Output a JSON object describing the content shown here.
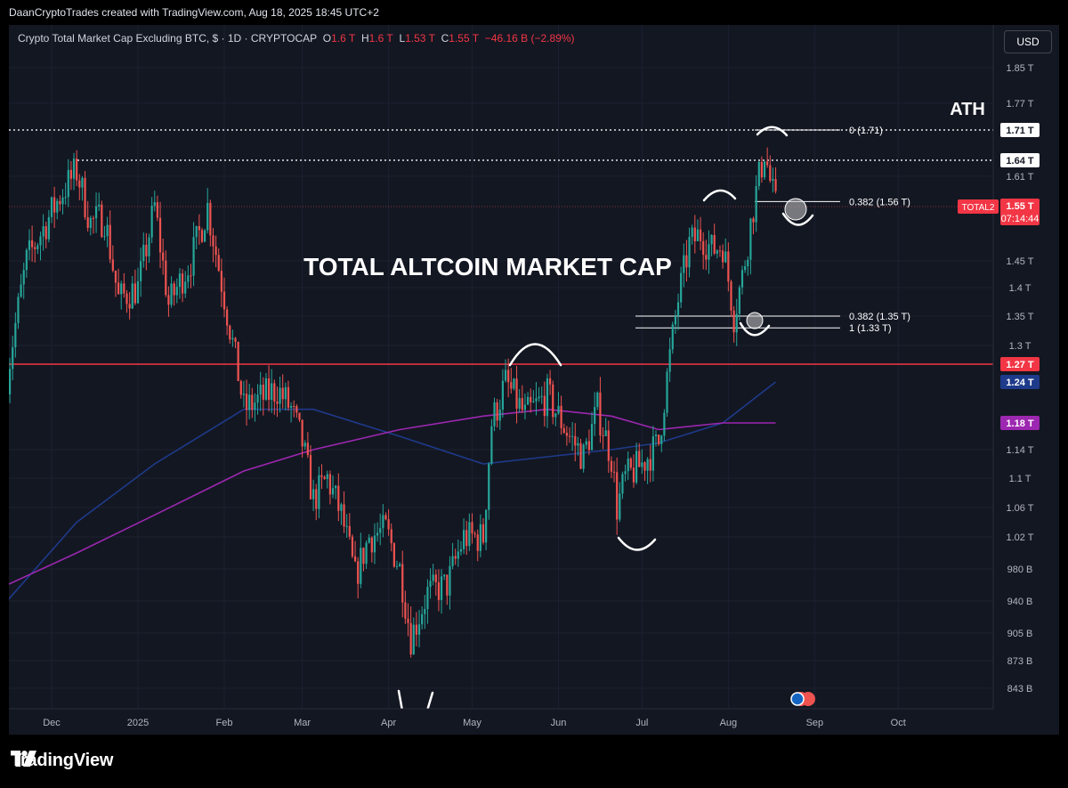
{
  "header": {
    "credit": "DaanCryptoTrades created with TradingView.com, Aug 18, 2025 18:45 UTC+2"
  },
  "legend": {
    "symbol": "Crypto Total Market Cap Excluding BTC, $ · 1D · CRYPTOCAP",
    "o_label": "O",
    "o_value": "1.6 T",
    "h_label": "H",
    "h_value": "1.6 T",
    "l_label": "L",
    "l_value": "1.53 T",
    "c_label": "C",
    "c_value": "1.55 T",
    "change": "−46.16 B (−2.89%)"
  },
  "currency_button": "USD",
  "brand": {
    "name": "TradingView"
  },
  "colors": {
    "background": "#131722",
    "up": "#26a69a",
    "down": "#ef5350",
    "ma_blue": "#1e3a8a",
    "ma_purple": "#9c27b0",
    "support_red": "#f23645"
  },
  "chart_data": {
    "type": "candlestick",
    "title": "TOTAL ALTCOIN MARKET CAP",
    "symbol_tag": "TOTAL2",
    "countdown": "07:14:44",
    "x_ticks": [
      "Dec",
      "2025",
      "Feb",
      "Mar",
      "Apr",
      "May",
      "Jun",
      "Jul",
      "Aug",
      "Sep",
      "Oct"
    ],
    "y_ticks": [
      "1.85 T",
      "1.77 T",
      "1.61 T",
      "1.45 T",
      "1.4 T",
      "1.35 T",
      "1.3 T",
      "1.14 T",
      "1.1 T",
      "1.06 T",
      "1.02 T",
      "980 B",
      "940 B",
      "905 B",
      "873 B",
      "843 B"
    ],
    "price_labels": [
      {
        "text": "1.71 T",
        "value": 1.71,
        "style": "white"
      },
      {
        "text": "1.64 T",
        "value": 1.64,
        "style": "white"
      },
      {
        "text": "1.55 T",
        "value": 1.55,
        "style": "red"
      },
      {
        "text": "1.27 T",
        "value": 1.27,
        "style": "red"
      },
      {
        "text": "1.24 T",
        "value": 1.24,
        "style": "blue"
      },
      {
        "text": "1.18 T",
        "value": 1.18,
        "style": "purple"
      }
    ],
    "horizontal_levels": [
      {
        "label": "ATH",
        "value": 1.71,
        "style": "dotted"
      },
      {
        "value": 1.64,
        "style": "dotted"
      },
      {
        "value": 1.27,
        "style": "support"
      }
    ],
    "fib_levels": [
      {
        "label": "0 (1.71)",
        "value": 1.71
      },
      {
        "label": "0.382 (1.56 T)",
        "value": 1.56
      },
      {
        "label": "0.382 (1.35 T)",
        "value": 1.35
      },
      {
        "label": "1 (1.33 T)",
        "value": 1.33
      }
    ],
    "close_path": [
      [
        "2024-11-15",
        1.25
      ],
      [
        "2024-11-22",
        1.45
      ],
      [
        "2024-12-05",
        1.58
      ],
      [
        "2024-12-10",
        1.62
      ],
      [
        "2024-12-15",
        1.52
      ],
      [
        "2024-12-20",
        1.53
      ],
      [
        "2024-12-25",
        1.38
      ],
      [
        "2025-01-01",
        1.4
      ],
      [
        "2025-01-07",
        1.55
      ],
      [
        "2025-01-12",
        1.37
      ],
      [
        "2025-01-20",
        1.45
      ],
      [
        "2025-01-26",
        1.55
      ],
      [
        "2025-01-31",
        1.41
      ],
      [
        "2025-02-03",
        1.33
      ],
      [
        "2025-02-08",
        1.2
      ],
      [
        "2025-02-20",
        1.23
      ],
      [
        "2025-02-25",
        1.2
      ],
      [
        "2025-03-01",
        1.15
      ],
      [
        "2025-03-05",
        1.07
      ],
      [
        "2025-03-10",
        1.1
      ],
      [
        "2025-03-15",
        1.05
      ],
      [
        "2025-03-20",
        0.97
      ],
      [
        "2025-03-25",
        1.02
      ],
      [
        "2025-03-31",
        1.03
      ],
      [
        "2025-04-05",
        0.98
      ],
      [
        "2025-04-09",
        0.9
      ],
      [
        "2025-04-15",
        0.95
      ],
      [
        "2025-04-22",
        0.96
      ],
      [
        "2025-04-28",
        1.02
      ],
      [
        "2025-05-05",
        1.02
      ],
      [
        "2025-05-08",
        1.18
      ],
      [
        "2025-05-13",
        1.24
      ],
      [
        "2025-05-20",
        1.19
      ],
      [
        "2025-05-28",
        1.22
      ],
      [
        "2025-06-05",
        1.16
      ],
      [
        "2025-06-10",
        1.13
      ],
      [
        "2025-06-15",
        1.2
      ],
      [
        "2025-06-20",
        1.13
      ],
      [
        "2025-06-22",
        1.06
      ],
      [
        "2025-06-25",
        1.1
      ],
      [
        "2025-07-01",
        1.12
      ],
      [
        "2025-07-07",
        1.15
      ],
      [
        "2025-07-14",
        1.38
      ],
      [
        "2025-07-18",
        1.48
      ],
      [
        "2025-07-22",
        1.5
      ],
      [
        "2025-07-26",
        1.47
      ],
      [
        "2025-07-30",
        1.48
      ],
      [
        "2025-08-03",
        1.35
      ],
      [
        "2025-08-06",
        1.42
      ],
      [
        "2025-08-10",
        1.55
      ],
      [
        "2025-08-14",
        1.66
      ],
      [
        "2025-08-16",
        1.6
      ],
      [
        "2025-08-18",
        1.55
      ]
    ],
    "ma_blue": [
      [
        "2024-11-15",
        0.94
      ],
      [
        "2024-12-10",
        1.04
      ],
      [
        "2025-01-07",
        1.12
      ],
      [
        "2025-02-08",
        1.2
      ],
      [
        "2025-03-05",
        1.2
      ],
      [
        "2025-04-05",
        1.16
      ],
      [
        "2025-05-05",
        1.12
      ],
      [
        "2025-05-28",
        1.13
      ],
      [
        "2025-06-20",
        1.14
      ],
      [
        "2025-07-07",
        1.15
      ],
      [
        "2025-07-30",
        1.18
      ],
      [
        "2025-08-18",
        1.24
      ]
    ],
    "ma_purple": [
      [
        "2024-11-15",
        0.96
      ],
      [
        "2024-12-10",
        1.0
      ],
      [
        "2025-01-07",
        1.05
      ],
      [
        "2025-02-08",
        1.11
      ],
      [
        "2025-03-05",
        1.14
      ],
      [
        "2025-04-05",
        1.17
      ],
      [
        "2025-05-05",
        1.19
      ],
      [
        "2025-05-28",
        1.2
      ],
      [
        "2025-06-20",
        1.19
      ],
      [
        "2025-07-07",
        1.17
      ],
      [
        "2025-07-30",
        1.18
      ],
      [
        "2025-08-18",
        1.18
      ]
    ]
  }
}
